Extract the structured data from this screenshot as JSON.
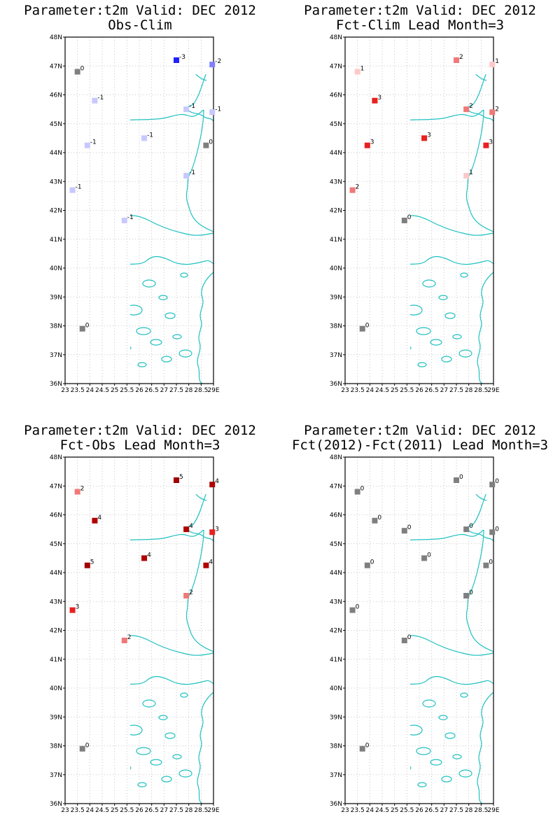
{
  "colors": {
    "coastline": "#20c0c0",
    "gray_zero": "#7f7f7f",
    "neg1": "#c8c8ff",
    "neg2": "#8080ff",
    "neg3": "#2020ff",
    "pos1": "#ffc8c8",
    "pos2": "#f07878",
    "pos3": "#e82020",
    "pos4": "#b00000",
    "pos5": "#a00000"
  },
  "chart_data": [
    {
      "type": "map-station-plot",
      "title_line1": "Parameter:t2m Valid: DEC 2012",
      "title_line2": "Obs-Clim",
      "xticks": [
        "23",
        "23.5",
        "24",
        "24.5",
        "25",
        "25.5",
        "26",
        "26.5",
        "27",
        "27.5",
        "28",
        "28.5",
        "29E"
      ],
      "yticks": [
        "36N",
        "37N",
        "38N",
        "39N",
        "40N",
        "41N",
        "42N",
        "43N",
        "44N",
        "45N",
        "46N",
        "47N",
        "48N"
      ],
      "xlim": [
        23,
        29
      ],
      "ylim": [
        36,
        48
      ],
      "stations": [
        {
          "lon": 23.5,
          "lat": 46.8,
          "value": "0"
        },
        {
          "lon": 27.5,
          "lat": 47.2,
          "value": "-3"
        },
        {
          "lon": 28.95,
          "lat": 47.05,
          "value": "-2"
        },
        {
          "lon": 24.2,
          "lat": 45.8,
          "value": "-1"
        },
        {
          "lon": 27.9,
          "lat": 45.5,
          "value": "-1"
        },
        {
          "lon": 28.95,
          "lat": 45.4,
          "value": "-1"
        },
        {
          "lon": 26.2,
          "lat": 44.5,
          "value": "-1"
        },
        {
          "lon": 23.9,
          "lat": 44.25,
          "value": "-1"
        },
        {
          "lon": 28.7,
          "lat": 44.25,
          "value": "0"
        },
        {
          "lon": 27.9,
          "lat": 43.2,
          "value": "-1"
        },
        {
          "lon": 23.3,
          "lat": 42.7,
          "value": "-1"
        },
        {
          "lon": 25.4,
          "lat": 41.65,
          "value": "-1"
        },
        {
          "lon": 23.7,
          "lat": 37.9,
          "value": "0"
        }
      ]
    },
    {
      "type": "map-station-plot",
      "title_line1": "Parameter:t2m Valid: DEC 2012",
      "title_line2": "Fct-Clim Lead Month=3",
      "xticks": [
        "23",
        "23.5",
        "24",
        "24.5",
        "25",
        "25.5",
        "26",
        "26.5",
        "27",
        "27.5",
        "28",
        "28.5",
        "29E"
      ],
      "yticks": [
        "36N",
        "37N",
        "38N",
        "39N",
        "40N",
        "41N",
        "42N",
        "43N",
        "44N",
        "45N",
        "46N",
        "47N",
        "48N"
      ],
      "xlim": [
        23,
        29
      ],
      "ylim": [
        36,
        48
      ],
      "stations": [
        {
          "lon": 23.5,
          "lat": 46.8,
          "value": "1"
        },
        {
          "lon": 27.5,
          "lat": 47.2,
          "value": "2"
        },
        {
          "lon": 28.95,
          "lat": 47.05,
          "value": "1"
        },
        {
          "lon": 24.2,
          "lat": 45.8,
          "value": "3"
        },
        {
          "lon": 27.9,
          "lat": 45.5,
          "value": "2"
        },
        {
          "lon": 28.95,
          "lat": 45.4,
          "value": "2"
        },
        {
          "lon": 26.2,
          "lat": 44.5,
          "value": "3"
        },
        {
          "lon": 23.9,
          "lat": 44.25,
          "value": "3"
        },
        {
          "lon": 28.7,
          "lat": 44.25,
          "value": "3"
        },
        {
          "lon": 27.9,
          "lat": 43.2,
          "value": "1"
        },
        {
          "lon": 23.3,
          "lat": 42.7,
          "value": "2"
        },
        {
          "lon": 25.4,
          "lat": 41.65,
          "value": "0"
        },
        {
          "lon": 23.7,
          "lat": 37.9,
          "value": "0"
        }
      ]
    },
    {
      "type": "map-station-plot",
      "title_line1": "Parameter:t2m Valid: DEC 2012",
      "title_line2": "Fct-Obs Lead Month=3",
      "xticks": [
        "23",
        "23.5",
        "24",
        "24.5",
        "25",
        "25.5",
        "26",
        "26.5",
        "27",
        "27.5",
        "28",
        "28.5",
        "29E"
      ],
      "yticks": [
        "36N",
        "37N",
        "38N",
        "39N",
        "40N",
        "41N",
        "42N",
        "43N",
        "44N",
        "45N",
        "46N",
        "47N",
        "48N"
      ],
      "xlim": [
        23,
        29
      ],
      "ylim": [
        36,
        48
      ],
      "stations": [
        {
          "lon": 23.5,
          "lat": 46.8,
          "value": "2"
        },
        {
          "lon": 27.5,
          "lat": 47.2,
          "value": "5"
        },
        {
          "lon": 28.95,
          "lat": 47.05,
          "value": "4"
        },
        {
          "lon": 24.2,
          "lat": 45.8,
          "value": "4"
        },
        {
          "lon": 27.9,
          "lat": 45.5,
          "value": "4"
        },
        {
          "lon": 28.95,
          "lat": 45.4,
          "value": "3"
        },
        {
          "lon": 26.2,
          "lat": 44.5,
          "value": "4"
        },
        {
          "lon": 23.9,
          "lat": 44.25,
          "value": "5"
        },
        {
          "lon": 28.7,
          "lat": 44.25,
          "value": "4"
        },
        {
          "lon": 27.9,
          "lat": 43.2,
          "value": "2"
        },
        {
          "lon": 23.3,
          "lat": 42.7,
          "value": "3"
        },
        {
          "lon": 25.4,
          "lat": 41.65,
          "value": "2"
        },
        {
          "lon": 23.7,
          "lat": 37.9,
          "value": "0"
        }
      ]
    },
    {
      "type": "map-station-plot",
      "title_line1": "Parameter:t2m Valid: DEC 2012",
      "title_line2": "Fct(2012)-Fct(2011) Lead Month=3",
      "xticks": [
        "23",
        "23.5",
        "24",
        "24.5",
        "25",
        "25.5",
        "26",
        "26.5",
        "27",
        "27.5",
        "28",
        "28.5",
        "29E"
      ],
      "yticks": [
        "36N",
        "37N",
        "38N",
        "39N",
        "40N",
        "41N",
        "42N",
        "43N",
        "44N",
        "45N",
        "46N",
        "47N",
        "48N"
      ],
      "xlim": [
        23,
        29
      ],
      "ylim": [
        36,
        48
      ],
      "stations": [
        {
          "lon": 23.5,
          "lat": 46.8,
          "value": "0"
        },
        {
          "lon": 27.5,
          "lat": 47.2,
          "value": "0"
        },
        {
          "lon": 28.95,
          "lat": 47.05,
          "value": "0"
        },
        {
          "lon": 24.2,
          "lat": 45.8,
          "value": "0"
        },
        {
          "lon": 25.4,
          "lat": 45.45,
          "value": "0"
        },
        {
          "lon": 27.9,
          "lat": 45.5,
          "value": "0"
        },
        {
          "lon": 28.95,
          "lat": 45.4,
          "value": "0"
        },
        {
          "lon": 26.2,
          "lat": 44.5,
          "value": "0"
        },
        {
          "lon": 23.9,
          "lat": 44.25,
          "value": "0"
        },
        {
          "lon": 28.7,
          "lat": 44.25,
          "value": "0"
        },
        {
          "lon": 27.9,
          "lat": 43.2,
          "value": "0"
        },
        {
          "lon": 23.3,
          "lat": 42.7,
          "value": "0"
        },
        {
          "lon": 25.4,
          "lat": 41.65,
          "value": "0"
        },
        {
          "lon": 23.7,
          "lat": 37.9,
          "value": "0"
        }
      ]
    }
  ]
}
